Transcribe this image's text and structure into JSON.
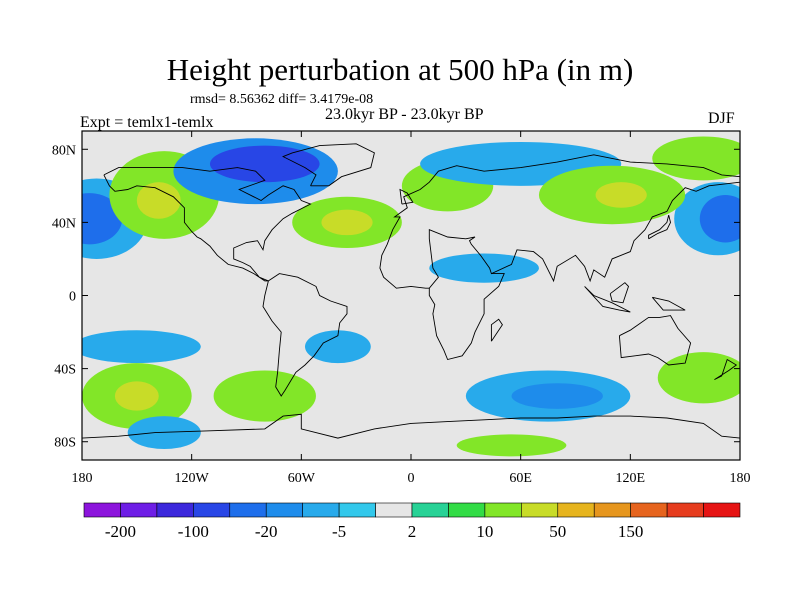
{
  "title": "Height perturbation at 500 hPa (in m)",
  "stats_line": "rmsd= 8.56362 diff= 3.4179e-08",
  "experiment_label": "Expt = temlx1-temlx",
  "period_label": "23.0kyr BP - 23.0kyr BP",
  "season_label": "DJF",
  "map": {
    "lat_ticks": [
      {
        "value": 80,
        "label": "80N"
      },
      {
        "value": 40,
        "label": "40N"
      },
      {
        "value": 0,
        "label": "0"
      },
      {
        "value": -40,
        "label": "40S"
      },
      {
        "value": -80,
        "label": "80S"
      }
    ],
    "lon_ticks": [
      {
        "value": -180,
        "label": "180"
      },
      {
        "value": -120,
        "label": "120W"
      },
      {
        "value": -60,
        "label": "60W"
      },
      {
        "value": 0,
        "label": "0"
      },
      {
        "value": 60,
        "label": "60E"
      },
      {
        "value": 120,
        "label": "120E"
      },
      {
        "value": 180,
        "label": "180"
      }
    ],
    "lat_range": [
      -90,
      90
    ],
    "lon_range": [
      -180,
      180
    ],
    "background_color": "#e6e6e6"
  },
  "colorbar": {
    "colors": [
      "#8c14dc",
      "#6e1ee6",
      "#3c28dc",
      "#2846e6",
      "#1e6eeb",
      "#1e8ceb",
      "#28aaeb",
      "#32c8eb",
      "#e6e6e6",
      "#28d296",
      "#32dc46",
      "#82e628",
      "#c8dc28",
      "#e6b41e",
      "#e6961e",
      "#e6641e",
      "#e63c1e",
      "#e61414"
    ],
    "labels": [
      {
        "boundary": 1,
        "text": "-200"
      },
      {
        "boundary": 3,
        "text": "-100"
      },
      {
        "boundary": 5,
        "text": "-20"
      },
      {
        "boundary": 7,
        "text": "-5"
      },
      {
        "boundary": 9,
        "text": "2"
      },
      {
        "boundary": 11,
        "text": "10"
      },
      {
        "boundary": 13,
        "text": "50"
      },
      {
        "boundary": 15,
        "text": "150"
      }
    ]
  },
  "anomaly_patches": [
    {
      "name": "north-pacific-low",
      "lon": -172,
      "lat": 42,
      "rlon": 28,
      "rlat": 22,
      "color": "#28aaeb"
    },
    {
      "name": "north-pacific-low-core",
      "lon": -176,
      "lat": 42,
      "rlon": 18,
      "rlat": 14,
      "color": "#1e6eeb"
    },
    {
      "name": "north-pacific-low-east",
      "lon": 168,
      "lat": 42,
      "rlon": 24,
      "rlat": 20,
      "color": "#28aaeb"
    },
    {
      "name": "north-pacific-low-east-core",
      "lon": 172,
      "lat": 42,
      "rlon": 14,
      "rlat": 13,
      "color": "#1e6eeb"
    },
    {
      "name": "west-canada-high",
      "lon": -135,
      "lat": 55,
      "rlon": 30,
      "rlat": 24,
      "color": "#82e628"
    },
    {
      "name": "west-canada-high-core",
      "lon": -138,
      "lat": 52,
      "rlon": 12,
      "rlat": 10,
      "color": "#c8dc28"
    },
    {
      "name": "arctic-canada-low",
      "lon": -85,
      "lat": 68,
      "rlon": 45,
      "rlat": 18,
      "color": "#1e8ceb"
    },
    {
      "name": "arctic-canada-low-core",
      "lon": -80,
      "lat": 72,
      "rlon": 30,
      "rlat": 10,
      "color": "#2846e6"
    },
    {
      "name": "north-atlantic-high",
      "lon": -35,
      "lat": 40,
      "rlon": 30,
      "rlat": 14,
      "color": "#82e628"
    },
    {
      "name": "north-atlantic-high-core",
      "lon": -35,
      "lat": 40,
      "rlon": 14,
      "rlat": 7,
      "color": "#c8dc28"
    },
    {
      "name": "europe-high",
      "lon": 20,
      "lat": 60,
      "rlon": 25,
      "rlat": 14,
      "color": "#82e628"
    },
    {
      "name": "eurasia-low",
      "lon": 60,
      "lat": 72,
      "rlon": 55,
      "rlat": 12,
      "color": "#28aaeb"
    },
    {
      "name": "siberia-high",
      "lon": 110,
      "lat": 55,
      "rlon": 40,
      "rlat": 16,
      "color": "#82e628"
    },
    {
      "name": "siberia-high-core",
      "lon": 115,
      "lat": 55,
      "rlon": 14,
      "rlat": 7,
      "color": "#c8dc28"
    },
    {
      "name": "east-arctic-high",
      "lon": 160,
      "lat": 75,
      "rlon": 28,
      "rlat": 12,
      "color": "#82e628"
    },
    {
      "name": "sahara-low",
      "lon": 40,
      "lat": 15,
      "rlon": 30,
      "rlat": 8,
      "color": "#28aaeb"
    },
    {
      "name": "south-pacific-low",
      "lon": -150,
      "lat": -28,
      "rlon": 35,
      "rlat": 9,
      "color": "#28aaeb"
    },
    {
      "name": "south-pacific-high",
      "lon": -150,
      "lat": -55,
      "rlon": 30,
      "rlat": 18,
      "color": "#82e628"
    },
    {
      "name": "south-pacific-high-core",
      "lon": -150,
      "lat": -55,
      "rlon": 12,
      "rlat": 8,
      "color": "#c8dc28"
    },
    {
      "name": "south-pacific-low-2",
      "lon": -135,
      "lat": -75,
      "rlon": 20,
      "rlat": 9,
      "color": "#28aaeb"
    },
    {
      "name": "south-atlantic-low",
      "lon": -40,
      "lat": -28,
      "rlon": 18,
      "rlat": 9,
      "color": "#28aaeb"
    },
    {
      "name": "south-atlantic-high",
      "lon": -80,
      "lat": -55,
      "rlon": 28,
      "rlat": 14,
      "color": "#82e628"
    },
    {
      "name": "indian-ocean-low",
      "lon": 75,
      "lat": -55,
      "rlon": 45,
      "rlat": 14,
      "color": "#28aaeb"
    },
    {
      "name": "indian-ocean-low-core",
      "lon": 80,
      "lat": -55,
      "rlon": 25,
      "rlat": 7,
      "color": "#1e8ceb"
    },
    {
      "name": "australia-high",
      "lon": 160,
      "lat": -45,
      "rlon": 25,
      "rlat": 14,
      "color": "#82e628"
    },
    {
      "name": "antarctic-high",
      "lon": 55,
      "lat": -82,
      "rlon": 30,
      "rlat": 6,
      "color": "#82e628"
    }
  ]
}
